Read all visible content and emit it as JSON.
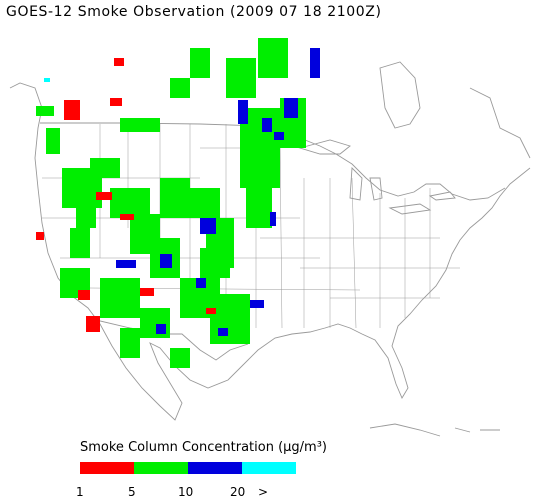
{
  "title": "GOES-12 Smoke Observation (2009 07 18  2100Z)",
  "legend": {
    "title": "Smoke Column Concentration (μg/m³)",
    "colors": [
      "#ff0000",
      "#00ee00",
      "#0000dd",
      "#00ffff"
    ],
    "ticks": [
      "1",
      "5",
      "10",
      "20",
      ">"
    ]
  }
}
